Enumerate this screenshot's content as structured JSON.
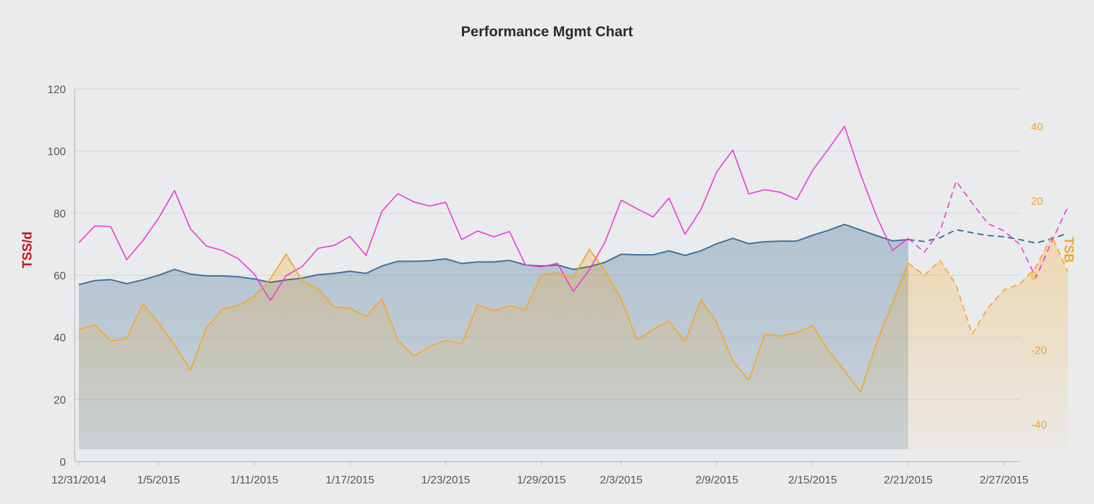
{
  "colors": {
    "fitness": "#3f6f96",
    "fitness_fill": "#b9c8d6",
    "fatigue": "#ee3fd0",
    "form": "#f5a623",
    "form_fill": "#ecd9b8",
    "grid": "#d4d6da",
    "left_axis_label": "#c0151b",
    "right_axis_label": "#f5a623"
  },
  "chart_data": {
    "type": "line",
    "title": "Performance Mgmt Chart",
    "ylabel_left": "TSS/d",
    "ylabel_right": "TSB",
    "ylim_left": [
      0,
      120
    ],
    "yticks_left": [
      0,
      20,
      40,
      60,
      80,
      100,
      120
    ],
    "ylim_right": [
      -50,
      50
    ],
    "yticks_right": [
      -40,
      -20,
      0,
      20,
      40
    ],
    "grid": true,
    "legend": "none",
    "x_start": "12/31/2014",
    "x_end": "2/28/2015",
    "x_tick_labels": [
      "12/31/2014",
      "1/5/2015",
      "1/11/2015",
      "1/17/2015",
      "1/23/2015",
      "1/29/2015",
      "2/3/2015",
      "2/9/2015",
      "2/15/2015",
      "2/21/2015",
      "2/27/2015"
    ],
    "actual_last_date": "2/21/2015",
    "projection_note": "dashed segments after 2/21/2015 are planned",
    "series": [
      {
        "axis": "left",
        "style": "area",
        "color": "#3f6f96",
        "values": [
          57,
          58.3,
          58.6,
          57.3,
          58.5,
          60,
          61.9,
          60.4,
          59.8,
          59.8,
          59.5,
          58.8,
          57.7,
          58.5,
          59.1,
          60.2,
          60.6,
          61.3,
          60.6,
          63,
          64.5,
          64.5,
          64.7,
          65.3,
          63.8,
          64.3,
          64.3,
          64.8,
          63.3,
          63,
          63.3,
          61.9,
          62.8,
          64.2,
          66.8,
          66.6,
          66.6,
          67.9,
          66.4,
          67.9,
          70.2,
          71.9,
          70.2,
          70.8,
          71,
          71,
          72.9,
          74.5,
          76.4,
          74.6,
          72.8,
          71.1,
          71.5,
          70.9,
          72.1,
          74.7,
          73.7,
          72.8,
          72.4,
          71.5,
          70.4,
          71.8,
          73.5
        ]
      },
      {
        "axis": "left",
        "style": "line",
        "color": "#ee3fd0",
        "values": [
          70.5,
          75.9,
          75.7,
          65,
          71.1,
          78.4,
          87.3,
          74.9,
          69.4,
          68,
          65.3,
          60.4,
          51.9,
          59.9,
          62.8,
          68.7,
          69.6,
          72.5,
          66.4,
          80.6,
          86.3,
          83.6,
          82.3,
          83.5,
          71.5,
          74.3,
          72.4,
          74.1,
          63.3,
          62.7,
          63.9,
          54.8,
          61.7,
          70.8,
          84.2,
          81.4,
          78.8,
          84.9,
          73.2,
          81.2,
          93.4,
          100.3,
          86.2,
          87.6,
          86.7,
          84.4,
          93.8,
          100.7,
          108,
          92.6,
          79.1,
          68,
          71.9,
          67.4,
          74.3,
          90.3,
          83.3,
          76.6,
          74.3,
          69.9,
          59.2,
          71,
          82
        ]
      },
      {
        "axis": "right",
        "style": "area",
        "color": "#f5a623",
        "values": [
          -14.5,
          -13.3,
          -17.6,
          -17,
          -7.7,
          -12.7,
          -18.7,
          -25.5,
          -14.1,
          -9,
          -8.1,
          -5.7,
          -1,
          5.7,
          -1.5,
          -3.6,
          -8.5,
          -8.9,
          -11.1,
          -6.3,
          -17.5,
          -21.7,
          -19.1,
          -17.5,
          -18.4,
          -7.9,
          -9.5,
          -8.2,
          -9.1,
          0,
          0.6,
          -0.6,
          7,
          1.2,
          -6.4,
          -17.4,
          -14.5,
          -12.3,
          -17.8,
          -6.6,
          -12.8,
          -23,
          -28.2,
          -15.8,
          -16.3,
          -15.4,
          -13.5,
          -20.2,
          -25.6,
          -31.3,
          -18.2,
          -7.5,
          3.3,
          0,
          4,
          -2.6,
          -15.8,
          -8.7,
          -3.9,
          -2.3,
          2.2,
          10.5,
          1
        ]
      }
    ]
  }
}
